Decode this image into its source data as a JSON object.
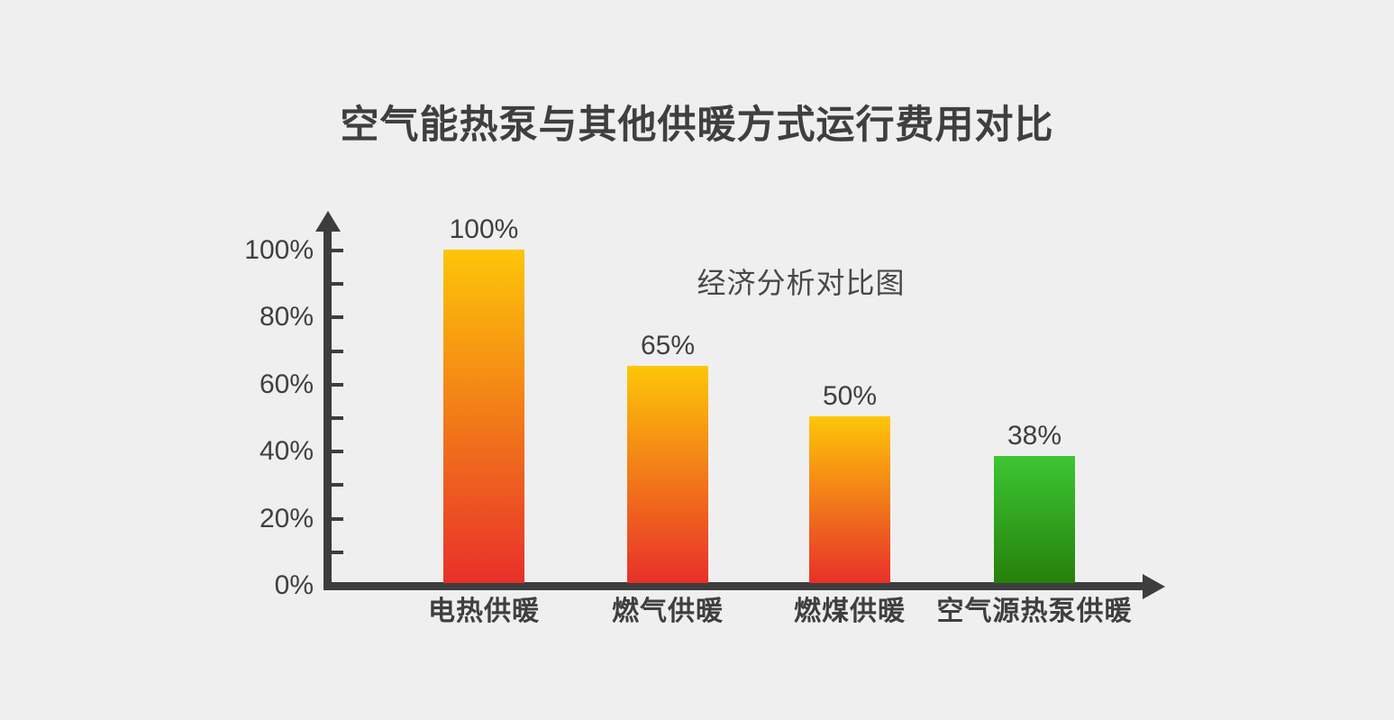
{
  "page": {
    "background_color": "#efefef",
    "text_color": "#3f3f3f",
    "axis_color": "#3d3d3d"
  },
  "chart_data": {
    "type": "bar",
    "title": "空气能热泵与其他供暖方式运行费用对比",
    "annotation": "经济分析对比图",
    "categories": [
      "电热供暖",
      "燃气供暖",
      "燃煤供暖",
      "空气源热泵供暖"
    ],
    "values": [
      100,
      65,
      50,
      38
    ],
    "value_labels": [
      "100%",
      "65%",
      "50%",
      "38%"
    ],
    "y_axis": {
      "min": 0,
      "max": 100,
      "tick_step": 10,
      "label_step": 20,
      "tick_labels": [
        "0%",
        "20%",
        "40%",
        "60%",
        "80%",
        "100%"
      ],
      "unit": "%"
    },
    "xlabel": "",
    "ylabel": "",
    "grid": false,
    "legend": false,
    "bar_colors": [
      {
        "top": "#fdc608",
        "bottom": "#e8302a"
      },
      {
        "top": "#fdc608",
        "bottom": "#e8302a"
      },
      {
        "top": "#fdc608",
        "bottom": "#e8302a"
      },
      {
        "top": "#3dc634",
        "bottom": "#26800b"
      }
    ]
  }
}
